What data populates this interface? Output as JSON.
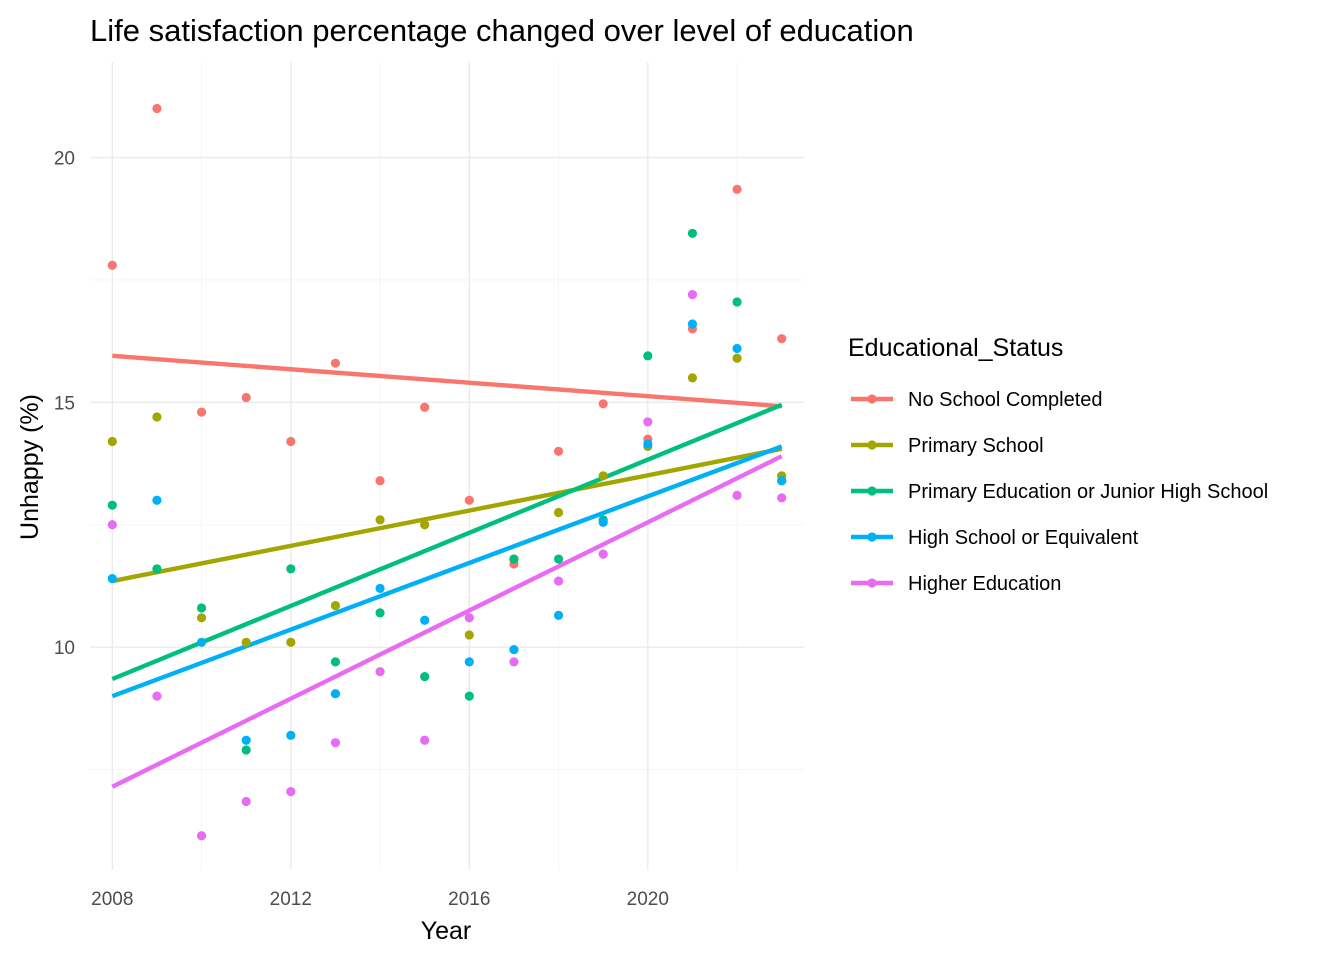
{
  "chart_data": {
    "type": "scatter",
    "title": "Life satisfaction  percentage changed over level of education",
    "xlabel": "Year",
    "ylabel": "Unhappy (%)",
    "xlim": [
      2007.5,
      2023.5
    ],
    "ylim": [
      5.45,
      21.95
    ],
    "x_ticks": [
      2008,
      2012,
      2016,
      2020
    ],
    "y_ticks": [
      10,
      15,
      20
    ],
    "grid": true,
    "legend": {
      "title": "Educational_Status",
      "position": "right"
    },
    "series": [
      {
        "name": "No School Completed",
        "color": "#F8766D",
        "x": [
          2008,
          2009,
          2010,
          2011,
          2012,
          2013,
          2014,
          2015,
          2016,
          2017,
          2018,
          2019,
          2020,
          2021,
          2022,
          2023
        ],
        "y": [
          17.8,
          21.0,
          14.8,
          15.1,
          14.2,
          15.8,
          13.4,
          14.9,
          13.0,
          11.7,
          14.0,
          14.97,
          14.25,
          16.5,
          19.35,
          16.3
        ],
        "trend": [
          15.95,
          14.92
        ]
      },
      {
        "name": "Primary School",
        "color": "#A3A500",
        "x": [
          2008,
          2009,
          2010,
          2011,
          2012,
          2013,
          2014,
          2015,
          2016,
          2017,
          2018,
          2019,
          2020,
          2021,
          2022,
          2023
        ],
        "y": [
          14.2,
          14.7,
          10.6,
          10.1,
          10.1,
          10.85,
          12.6,
          12.5,
          10.25,
          11.8,
          12.75,
          13.5,
          14.1,
          15.5,
          15.9,
          13.5
        ],
        "trend": [
          11.35,
          14.05
        ]
      },
      {
        "name": "Primary Education or Junior High School",
        "color": "#00BF7D",
        "x": [
          2008,
          2009,
          2010,
          2011,
          2012,
          2013,
          2014,
          2015,
          2016,
          2017,
          2018,
          2019,
          2020,
          2021,
          2022,
          2023
        ],
        "y": [
          12.9,
          11.6,
          10.8,
          7.9,
          11.6,
          9.7,
          10.7,
          9.4,
          9.0,
          11.8,
          11.8,
          12.6,
          15.95,
          18.45,
          17.05,
          13.4
        ],
        "trend": [
          9.35,
          14.95
        ]
      },
      {
        "name": "High School or Equivalent",
        "color": "#00B0F6",
        "x": [
          2008,
          2009,
          2010,
          2011,
          2012,
          2013,
          2014,
          2015,
          2016,
          2017,
          2018,
          2019,
          2020,
          2021,
          2022,
          2023
        ],
        "y": [
          11.4,
          13.0,
          10.1,
          8.1,
          8.2,
          9.05,
          11.2,
          10.55,
          9.7,
          9.95,
          10.65,
          12.55,
          14.15,
          16.6,
          16.1,
          13.4
        ],
        "trend": [
          9.0,
          14.1
        ]
      },
      {
        "name": "Higher Education",
        "color": "#E76BF3",
        "x": [
          2008,
          2009,
          2010,
          2011,
          2012,
          2013,
          2014,
          2015,
          2016,
          2017,
          2018,
          2019,
          2020,
          2021,
          2022,
          2023
        ],
        "y": [
          12.5,
          9.0,
          6.15,
          6.85,
          7.05,
          8.05,
          9.5,
          8.1,
          10.6,
          9.7,
          11.35,
          11.9,
          14.6,
          17.2,
          13.1,
          13.05
        ],
        "trend": [
          7.15,
          13.9
        ]
      }
    ]
  }
}
